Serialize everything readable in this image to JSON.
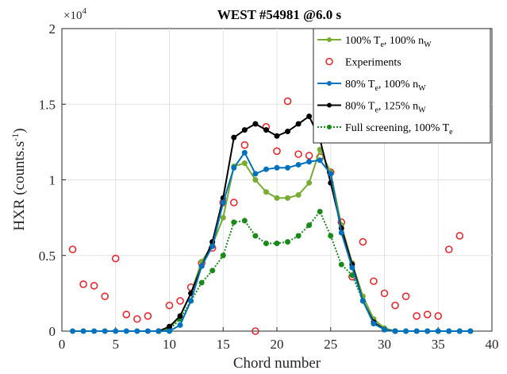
{
  "chart_data": {
    "type": "line",
    "title": "WEST #54981 @6.0 s",
    "xlabel": "Chord number",
    "ylabel": "HXR (counts.s",
    "ylabel_sup": "-1",
    "ylabel_end": ")",
    "y_multiplier": "×10",
    "y_multiplier_exp": "4",
    "xlim": [
      0,
      40
    ],
    "ylim": [
      0,
      20000
    ],
    "x_ticks": [
      "0",
      "5",
      "10",
      "15",
      "20",
      "25",
      "30",
      "35",
      "40"
    ],
    "y_ticks": [
      "0",
      "0.5",
      "1",
      "1.5",
      "2"
    ],
    "grid": true,
    "legend_position": "top-right",
    "series": [
      {
        "name": "100% Te, 100% nW",
        "legend": {
          "a": "100% T",
          "b": "e",
          "c": ", 100% n",
          "d": "W"
        },
        "color": "#77ac30",
        "style": "solid",
        "x": [
          9,
          10,
          11,
          12,
          13,
          14,
          15,
          16,
          17,
          18,
          19,
          20,
          21,
          22,
          23,
          24,
          25,
          26,
          27,
          28,
          29,
          30,
          31
        ],
        "y": [
          0,
          200,
          1000,
          2500,
          4600,
          5700,
          7500,
          10900,
          11100,
          10000,
          9200,
          8800,
          8800,
          9000,
          9800,
          12000,
          10500,
          7000,
          4500,
          2300,
          800,
          200,
          0
        ]
      },
      {
        "name": "Experiments",
        "legend": {
          "a": "Experiments",
          "b": "",
          "c": "",
          "d": ""
        },
        "color": "#e8292e",
        "style": "markers",
        "x": [
          1,
          2,
          3,
          4,
          5,
          6,
          7,
          8,
          10,
          11,
          12,
          13,
          14,
          15,
          16,
          17,
          18,
          19,
          20,
          21,
          22,
          23,
          24,
          25,
          26,
          27,
          28,
          29,
          30,
          31,
          32,
          33,
          34,
          35,
          36,
          37
        ],
        "y": [
          5400,
          3100,
          3000,
          2300,
          4800,
          1100,
          800,
          1000,
          1700,
          2000,
          2900,
          4500,
          5500,
          8500,
          8500,
          12300,
          0,
          13500,
          11900,
          15200,
          11700,
          11600,
          11500,
          10500,
          7200,
          3600,
          5900,
          3300,
          2500,
          1700,
          2300,
          1000,
          1100,
          1000,
          5400,
          6300
        ]
      },
      {
        "name": "80% Te, 100% nW",
        "legend": {
          "a": "80% T",
          "b": "e",
          "c": ", 100% n",
          "d": "W"
        },
        "color": "#0072bd",
        "style": "solid",
        "x": [
          1,
          2,
          3,
          4,
          5,
          6,
          7,
          8,
          9,
          10,
          11,
          12,
          13,
          14,
          15,
          16,
          17,
          18,
          19,
          20,
          21,
          22,
          23,
          24,
          25,
          26,
          27,
          28,
          29,
          30,
          31,
          32,
          33,
          34,
          35,
          36,
          37,
          38
        ],
        "y": [
          0,
          0,
          0,
          0,
          0,
          0,
          0,
          0,
          0,
          0,
          400,
          2000,
          4300,
          5600,
          8500,
          10800,
          11800,
          10400,
          10700,
          10800,
          10800,
          11000,
          11200,
          11300,
          10400,
          6500,
          4200,
          2000,
          500,
          100,
          0,
          0,
          0,
          0,
          0,
          0,
          0,
          0
        ]
      },
      {
        "name": "80% Te, 125% nW",
        "legend": {
          "a": "80% T",
          "b": "e",
          "c": ", 125% n",
          "d": "W"
        },
        "color": "#000000",
        "style": "solid",
        "x": [
          9,
          10,
          11,
          12,
          13,
          14,
          15,
          16,
          17,
          18,
          19,
          20,
          21,
          22,
          23,
          24,
          25,
          26,
          27,
          28,
          29,
          30,
          31
        ],
        "y": [
          0,
          300,
          1000,
          2500,
          4300,
          5900,
          8800,
          12800,
          13300,
          13700,
          13300,
          12900,
          13200,
          13700,
          14200,
          12700,
          9800,
          6800,
          4400,
          2000,
          600,
          100,
          0
        ]
      },
      {
        "name": "Full screening, 100% Te",
        "legend": {
          "a": "Full screening, 100% T",
          "b": "e",
          "c": "",
          "d": ""
        },
        "color": "#1a8a1a",
        "style": "dotted",
        "x": [
          9,
          10,
          11,
          12,
          13,
          14,
          15,
          16,
          17,
          18,
          19,
          20,
          21,
          22,
          23,
          24,
          25,
          26,
          27,
          28,
          29,
          30,
          31,
          32,
          33,
          34,
          35,
          36,
          37,
          38
        ],
        "y": [
          0,
          100,
          800,
          2000,
          3200,
          4000,
          5000,
          7200,
          7300,
          6300,
          5800,
          5800,
          5900,
          6300,
          7000,
          7900,
          6300,
          4400,
          3700,
          2000,
          500,
          100,
          0,
          0,
          0,
          0,
          0,
          0,
          0,
          0
        ]
      }
    ]
  }
}
